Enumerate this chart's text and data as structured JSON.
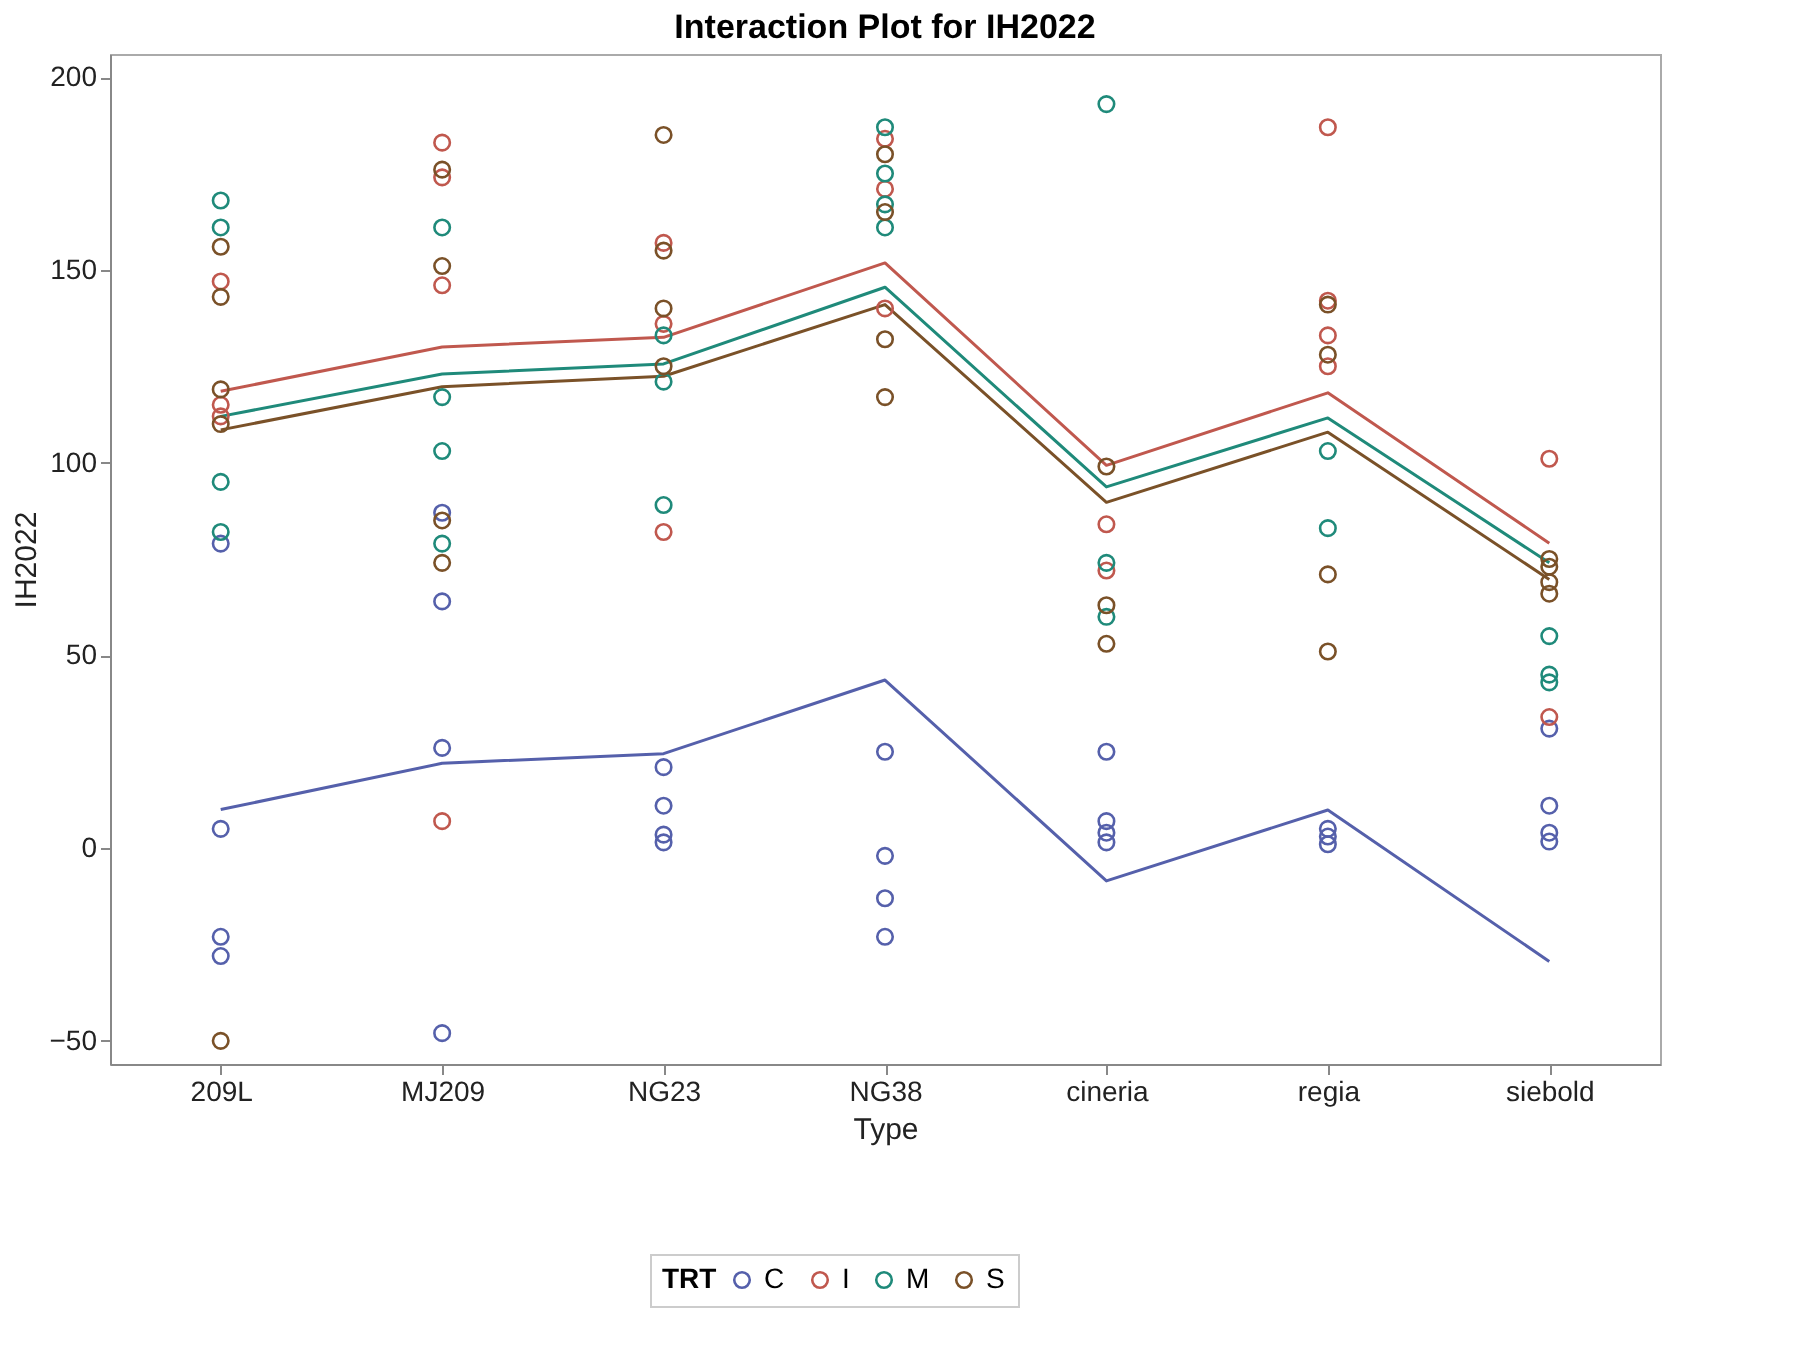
{
  "chart_data": {
    "type": "line",
    "title": "Interaction Plot for IH2022",
    "xlabel": "Type",
    "ylabel": "IH2022",
    "legend_title": "TRT",
    "categories": [
      "209L",
      "MJ209",
      "NG23",
      "NG38",
      "cineria",
      "regia",
      "siebold"
    ],
    "ylim": [
      -56,
      206
    ],
    "yticks": [
      -50,
      0,
      50,
      100,
      150,
      200
    ],
    "grid": false,
    "legend": "bottom",
    "line_style": "solid",
    "series": [
      {
        "name": "C",
        "color": "#5560ab",
        "marker": "none",
        "values": [
          10,
          22,
          24.5,
          43.6,
          -8.5,
          9.9,
          -29.4
        ]
      },
      {
        "name": "I",
        "color": "#c0584e",
        "marker": "none",
        "values": [
          118.5,
          130,
          132.5,
          151.8,
          99.3,
          118.1,
          79.1
        ]
      },
      {
        "name": "M",
        "color": "#1f8a7a",
        "marker": "none",
        "values": [
          112,
          123,
          125.6,
          145.5,
          93.7,
          111.6,
          74
        ]
      },
      {
        "name": "S",
        "color": "#7a5128",
        "marker": "none",
        "values": [
          108.5,
          119.7,
          122.4,
          141,
          89.7,
          107.9,
          69.7
        ]
      },
      {
        "type": "scatter",
        "color": "#5560ab",
        "marker": "circle",
        "x": [
          "209L",
          "209L",
          "209L",
          "209L",
          "MJ209",
          "MJ209",
          "MJ209",
          "MJ209",
          "NG23",
          "NG23",
          "NG23",
          "NG23",
          "NG38",
          "NG38",
          "NG38",
          "NG38",
          "cineria",
          "cineria",
          "cineria",
          "cineria",
          "regia",
          "regia",
          "regia",
          "siebold",
          "siebold",
          "siebold",
          "siebold"
        ],
        "values": [
          79,
          5,
          -23,
          -28,
          87,
          64,
          26,
          -48,
          21,
          11,
          3.5,
          1.5,
          25,
          -2,
          -13,
          -23,
          25,
          7,
          4,
          1.5,
          5,
          3,
          1,
          31,
          11,
          4,
          1.7
        ]
      },
      {
        "type": "scatter",
        "color": "#c0584e",
        "marker": "circle",
        "x": [
          "209L",
          "209L",
          "209L",
          "MJ209",
          "MJ209",
          "MJ209",
          "MJ209",
          "NG23",
          "NG23",
          "NG23",
          "NG38",
          "NG38",
          "NG38",
          "cineria",
          "cineria",
          "regia",
          "regia",
          "regia",
          "regia",
          "siebold",
          "siebold"
        ],
        "values": [
          147,
          115,
          112,
          183,
          174,
          146,
          7,
          157,
          136,
          82,
          184,
          171,
          140,
          84,
          72,
          187,
          142,
          133,
          125,
          101,
          34
        ]
      },
      {
        "type": "scatter",
        "color": "#1f8a7a",
        "marker": "circle",
        "x": [
          "209L",
          "209L",
          "209L",
          "209L",
          "MJ209",
          "MJ209",
          "MJ209",
          "MJ209",
          "NG23",
          "NG23",
          "NG23",
          "NG38",
          "NG38",
          "NG38",
          "NG38",
          "cineria",
          "cineria",
          "cineria",
          "regia",
          "regia",
          "siebold",
          "siebold",
          "siebold"
        ],
        "values": [
          168,
          161,
          95,
          82,
          161,
          117,
          103,
          79,
          133,
          121,
          89,
          187,
          175,
          167,
          161,
          193,
          74,
          60,
          103,
          83,
          55,
          45,
          43
        ]
      },
      {
        "type": "scatter",
        "color": "#7a5128",
        "marker": "circle",
        "x": [
          "209L",
          "209L",
          "209L",
          "209L",
          "209L",
          "MJ209",
          "MJ209",
          "MJ209",
          "MJ209",
          "NG23",
          "NG23",
          "NG23",
          "NG23",
          "NG38",
          "NG38",
          "NG38",
          "NG38",
          "cineria",
          "cineria",
          "cineria",
          "regia",
          "regia",
          "regia",
          "regia",
          "siebold",
          "siebold",
          "siebold",
          "siebold"
        ],
        "values": [
          156,
          143,
          119,
          110,
          -50,
          176,
          151,
          85,
          74,
          185,
          155,
          140,
          125,
          180,
          165,
          132,
          117,
          99,
          63,
          53,
          141,
          128,
          71,
          51,
          75,
          73,
          69,
          66
        ]
      }
    ]
  }
}
